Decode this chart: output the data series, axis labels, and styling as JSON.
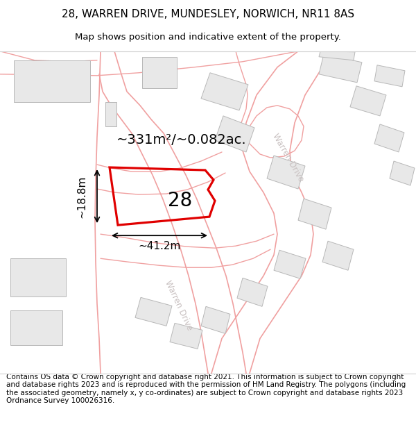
{
  "title_line1": "28, WARREN DRIVE, MUNDESLEY, NORWICH, NR11 8AS",
  "title_line2": "Map shows position and indicative extent of the property.",
  "footer_text": "Contains OS data © Crown copyright and database right 2021. This information is subject to Crown copyright and database rights 2023 and is reproduced with the permission of HM Land Registry. The polygons (including the associated geometry, namely x, y co-ordinates) are subject to Crown copyright and database rights 2023 Ordnance Survey 100026316.",
  "area_label": "~331m²/~0.082ac.",
  "number_label": "28",
  "width_label": "~41.2m",
  "height_label": "~18.8m",
  "background_color": "#ffffff",
  "map_bg_color": "#f8f8f8",
  "road_color": "#f0a0a0",
  "road_lw": 1.2,
  "building_color": "#e8e8e8",
  "building_edge_color": "#b8b8b8",
  "plot_polygon_color": "#e00000",
  "road_label_color": "#c8c0c0",
  "title_fontsize": 11,
  "subtitle_fontsize": 9.5,
  "footer_fontsize": 7.5,
  "area_fontsize": 14,
  "number_fontsize": 20,
  "measure_fontsize": 11,
  "road_label_fontsize": 8.5
}
